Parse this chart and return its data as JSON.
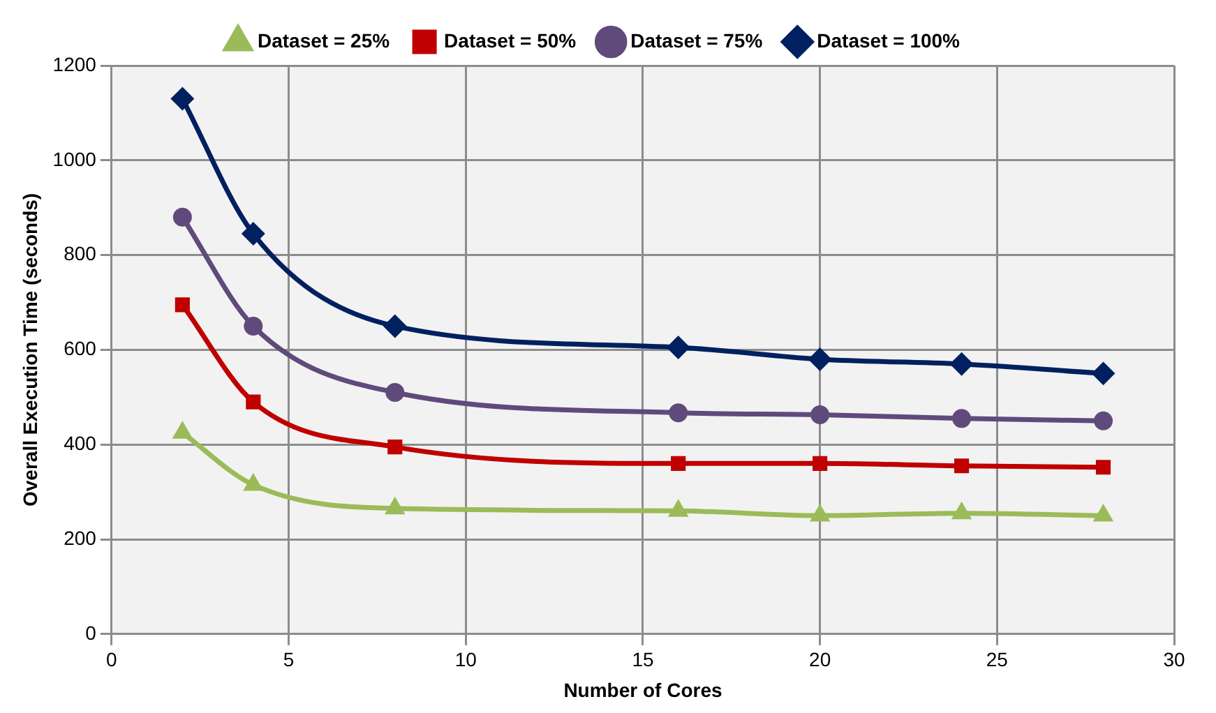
{
  "chart_data": {
    "type": "line",
    "xlabel": "Number of Cores",
    "ylabel": "Overall Execution Time (seconds)",
    "x": [
      2,
      4,
      8,
      16,
      20,
      24,
      28
    ],
    "series": [
      {
        "name": "Dataset = 25%",
        "color": "#9bbb59",
        "marker": "triangle",
        "values": [
          425,
          315,
          265,
          260,
          250,
          255,
          250
        ]
      },
      {
        "name": "Dataset = 50%",
        "color": "#c00000",
        "marker": "square",
        "values": [
          695,
          490,
          395,
          360,
          360,
          355,
          352
        ]
      },
      {
        "name": "Dataset = 75%",
        "color": "#604a7b",
        "marker": "circle",
        "values": [
          880,
          650,
          510,
          467,
          463,
          455,
          450
        ]
      },
      {
        "name": "Dataset = 100%",
        "color": "#002060",
        "marker": "diamond",
        "values": [
          1130,
          845,
          650,
          605,
          580,
          570,
          550
        ]
      }
    ],
    "xlim": [
      0,
      30
    ],
    "xticks": [
      0,
      5,
      10,
      15,
      20,
      25,
      30
    ],
    "ylim": [
      0,
      1200
    ],
    "yticks": [
      0,
      200,
      400,
      600,
      800,
      1000,
      1200
    ],
    "grid": true,
    "legend": "top"
  }
}
